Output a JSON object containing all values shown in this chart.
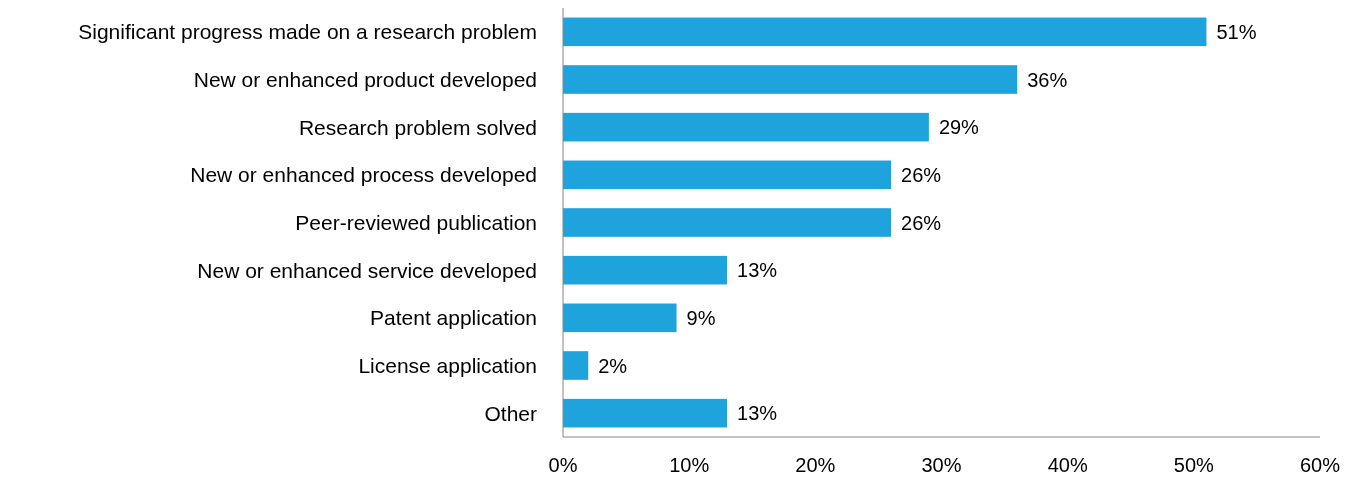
{
  "chart_data": {
    "type": "bar",
    "orientation": "horizontal",
    "categories": [
      "Significant progress made on a research problem",
      "New or enhanced product developed",
      "Research problem solved",
      "New or enhanced process developed",
      "Peer-reviewed publication",
      "New or enhanced service developed",
      "Patent application",
      "License application",
      "Other"
    ],
    "values": [
      51,
      36,
      29,
      26,
      26,
      13,
      9,
      2,
      13
    ],
    "value_labels": [
      "51%",
      "36%",
      "29%",
      "26%",
      "26%",
      "13%",
      "9%",
      "2%",
      "13%"
    ],
    "color": "#1fa3dc",
    "xlim": [
      0,
      60
    ],
    "xticks": [
      {
        "value": 0,
        "label": "0%"
      },
      {
        "value": 10,
        "label": "10%"
      },
      {
        "value": 20,
        "label": "20%"
      },
      {
        "value": 30,
        "label": "30%"
      },
      {
        "value": 40,
        "label": "40%"
      },
      {
        "value": 50,
        "label": "50%"
      },
      {
        "value": 60,
        "label": "60%"
      }
    ]
  }
}
